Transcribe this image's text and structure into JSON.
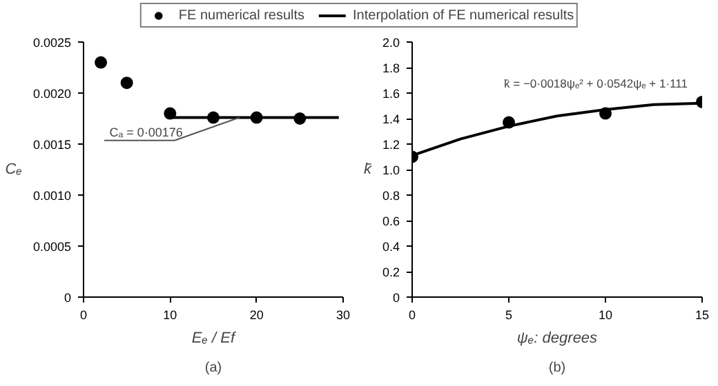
{
  "chart_data": [
    {
      "type": "scatter",
      "legend": "top",
      "grid": false,
      "marker": "circle",
      "xlabel": "Eₑ / Ef",
      "ylabel": "Cₑ",
      "xlim": [
        0,
        30
      ],
      "xticks": [
        0,
        10,
        20,
        30
      ],
      "ylim": [
        0,
        0.0025
      ],
      "yticks": [
        0,
        {
          "value": 0.0005,
          "label": "0.0005"
        },
        {
          "value": 0.001,
          "label": "0.0010"
        },
        {
          "value": 0.0015,
          "label": "0.0015"
        },
        {
          "value": 0.002,
          "label": "0.0020"
        },
        {
          "value": 0.0025,
          "label": "0.0025"
        }
      ],
      "annotations": [
        {
          "text": "Cₐ = 0·00176",
          "x": 18,
          "y": 0.00176
        },
        "(a)"
      ],
      "series": [
        {
          "name": "FE numerical results",
          "color": "#000000",
          "x": [
            2,
            5,
            10,
            15,
            20,
            25
          ],
          "values": [
            0.0023,
            0.0021,
            0.0018,
            0.00176,
            0.00176,
            0.00175
          ]
        },
        {
          "name": "Interpolation of FE numerical results",
          "type": "line",
          "marker": "none",
          "color": "#000000",
          "x": [
            10,
            29.5
          ],
          "values": [
            0.00176,
            0.00176
          ]
        }
      ]
    },
    {
      "type": "scatter",
      "grid": false,
      "marker": "circle",
      "xlabel": "ψₑ: degrees",
      "ylabel": "k̄",
      "xlim": [
        0,
        15
      ],
      "xticks": [
        0,
        5,
        10,
        15
      ],
      "ylim": [
        0,
        2
      ],
      "yticks": [
        0,
        0.2,
        0.4,
        0.6,
        0.8,
        {
          "value": 1,
          "label": "1.0"
        },
        1.2,
        1.4,
        1.6,
        1.8,
        {
          "value": 2,
          "label": "2.0"
        }
      ],
      "annotations": [
        {
          "text": "k̄ = −0·0018ψₑ² + 0·0542ψₑ + 1·111",
          "x": 9.5,
          "y": 1.47
        },
        "(b)"
      ],
      "series": [
        {
          "color": "#000000",
          "x": [
            0,
            5,
            10,
            15
          ],
          "values": [
            1.1,
            1.37,
            1.44,
            1.53
          ]
        },
        {
          "type": "line",
          "marker": "none",
          "color": "#000000",
          "x": [
            0,
            2.5,
            5,
            7.5,
            10,
            12.5,
            15
          ],
          "values": [
            1.11,
            1.24,
            1.34,
            1.42,
            1.47,
            1.51,
            1.52
          ]
        }
      ]
    }
  ]
}
